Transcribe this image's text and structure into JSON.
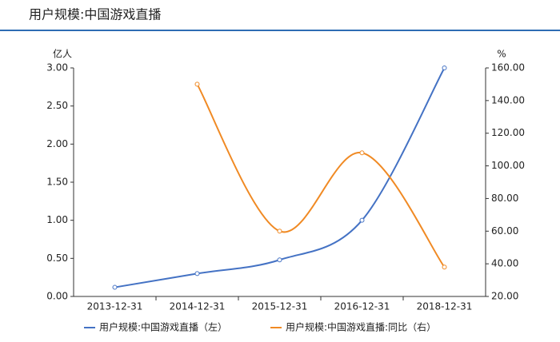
{
  "chart_data": {
    "type": "line",
    "title": "用户规模:中国游戏直播",
    "y_label": "亿人",
    "y2_label": "%",
    "categories": [
      "2013-12-31",
      "2014-12-31",
      "2015-12-31",
      "2016-12-31",
      "2018-12-31"
    ],
    "series": [
      {
        "name": "用户规模:中国游戏直播（左）",
        "color": "#4472c4",
        "values": [
          0.12,
          0.3,
          0.48,
          1.0,
          3.0
        ]
      },
      {
        "name": "用户规模:中国游戏直播:同比（右）",
        "color": "#f08a24",
        "axis": "y2",
        "values": [
          null,
          150,
          60,
          108,
          38
        ]
      }
    ],
    "ylim": [
      0,
      3
    ],
    "yticks": [
      {
        "value": 0,
        "label": "0.00"
      },
      {
        "value": 0.5,
        "label": "0.50"
      },
      {
        "value": 1,
        "label": "1.00"
      },
      {
        "value": 1.5,
        "label": "1.50"
      },
      {
        "value": 2,
        "label": "2.00"
      },
      {
        "value": 2.5,
        "label": "2.50"
      },
      {
        "value": 3,
        "label": "3.00"
      }
    ],
    "y2lim": [
      20,
      160
    ],
    "y2ticks": [
      {
        "value": 20,
        "label": "20.00"
      },
      {
        "value": 40,
        "label": "40.00"
      },
      {
        "value": 60,
        "label": "60.00"
      },
      {
        "value": 80,
        "label": "80.00"
      },
      {
        "value": 100,
        "label": "100.00"
      },
      {
        "value": 120,
        "label": "120.00"
      },
      {
        "value": 140,
        "label": "140.00"
      },
      {
        "value": 160,
        "label": "160.00"
      }
    ]
  }
}
